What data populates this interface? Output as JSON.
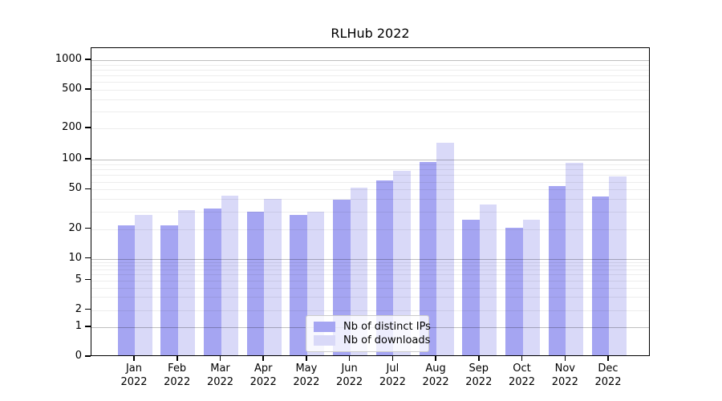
{
  "chart": {
    "title": "RLHub 2022"
  },
  "chart_data": {
    "type": "bar",
    "title": "RLHub 2022",
    "categories": [
      "Jan 2022",
      "Feb 2022",
      "Mar 2022",
      "Apr 2022",
      "May 2022",
      "Jun 2022",
      "Jul 2022",
      "Aug 2022",
      "Sep 2022",
      "Oct 2022",
      "Nov 2022",
      "Dec 2022"
    ],
    "series": [
      {
        "name": "Nb of distinct IPs",
        "color": "#a5a5f2",
        "values": [
          21,
          21,
          31,
          29,
          27,
          38,
          59,
          92,
          24,
          20,
          52,
          41
        ]
      },
      {
        "name": "Nb of downloads",
        "color": "#d9d9f8",
        "values": [
          27,
          30,
          42,
          39,
          29,
          50,
          75,
          140,
          34,
          24,
          89,
          65
        ]
      }
    ],
    "xlabel": "",
    "ylabel": "",
    "yscale": "symlog",
    "yticks": [
      0,
      1,
      2,
      5,
      10,
      20,
      50,
      100,
      200,
      500,
      1000
    ],
    "ylim": [
      0,
      1300
    ],
    "grid": "horizontal major and minor log gridlines, drawn over bars",
    "legend_position": "lower center inside plot"
  }
}
